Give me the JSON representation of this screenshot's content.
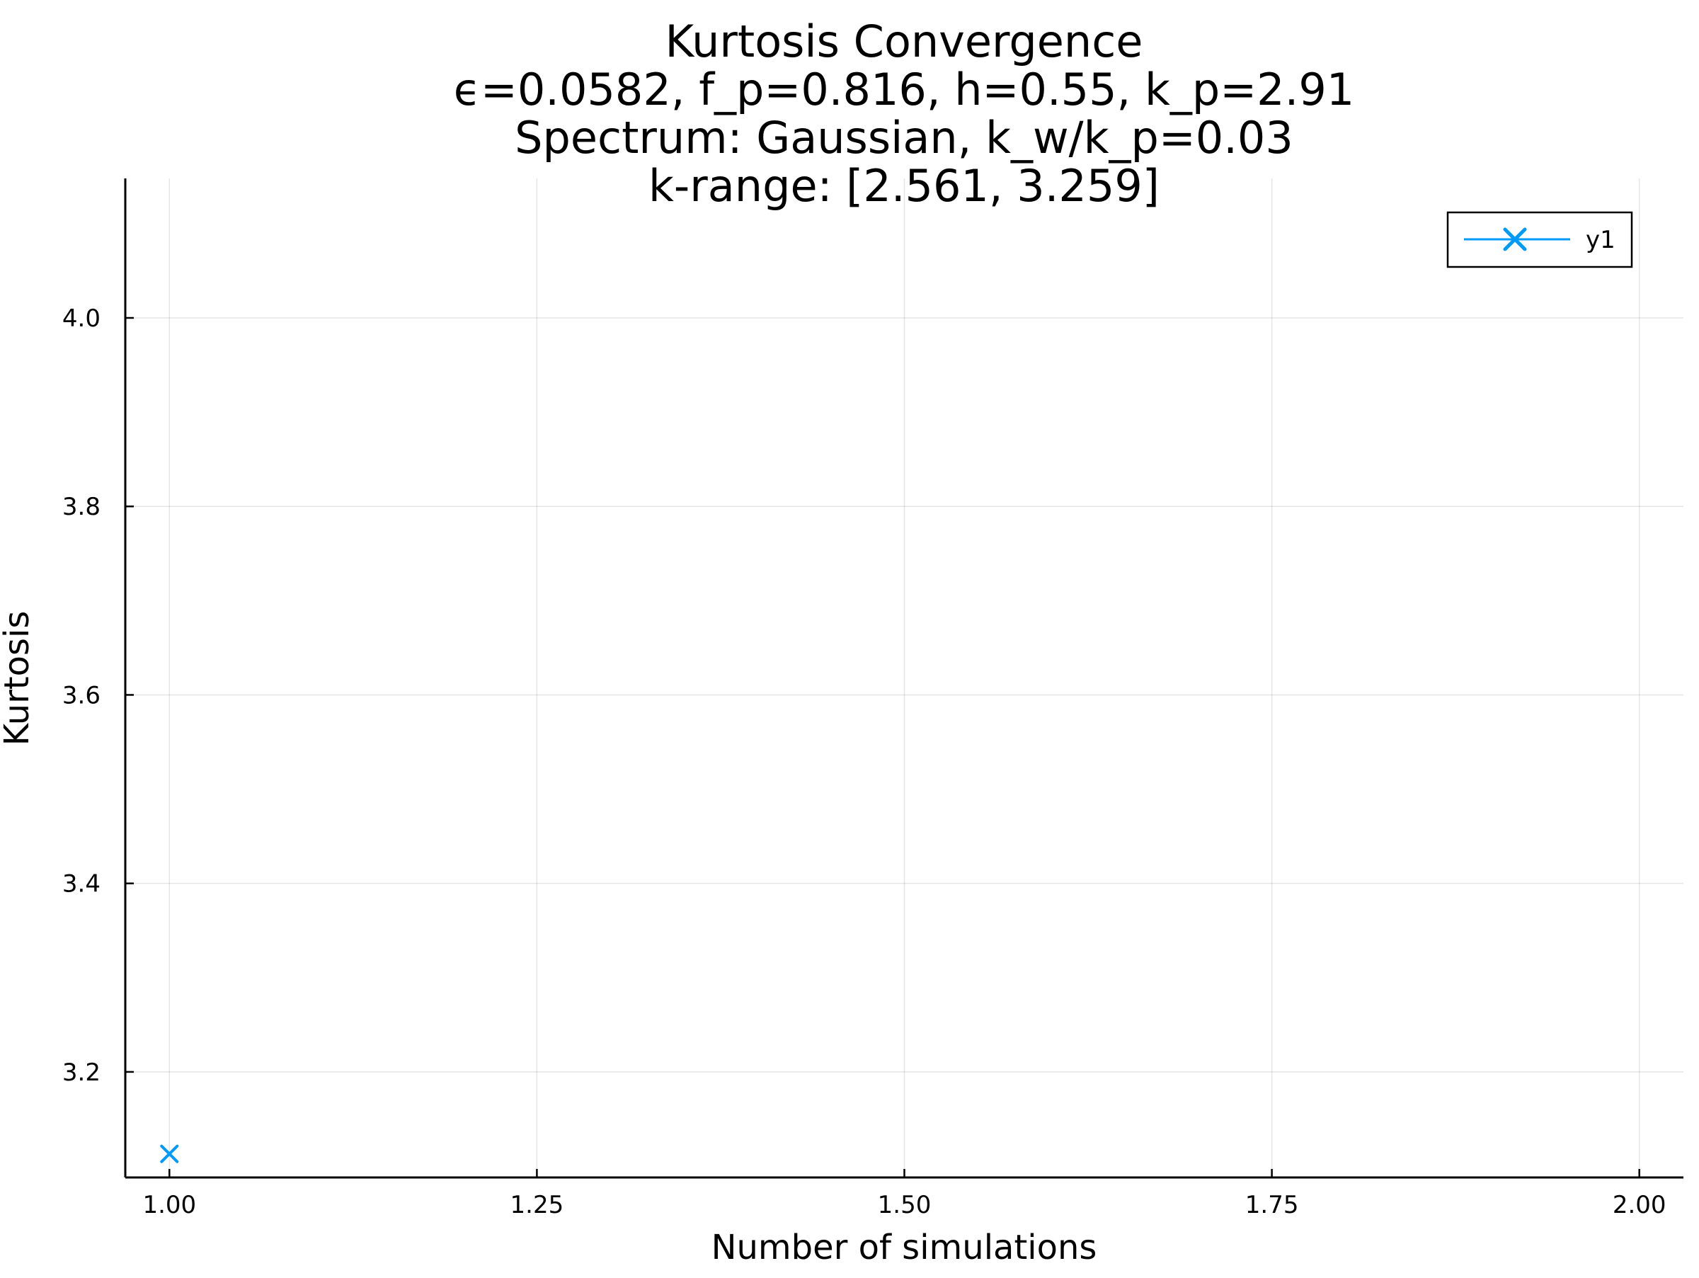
{
  "chart_data": {
    "type": "scatter",
    "title_lines": [
      "Kurtosis Convergence",
      "ϵ=0.0582, f_p=0.816, h=0.55, k_p=2.91",
      "Spectrum: Gaussian, k_w/k_p=0.03",
      "k-range: [2.561, 3.259]"
    ],
    "xlabel": "Number of simulations",
    "ylabel": "Kurtosis",
    "xlim": [
      0.97,
      2.03
    ],
    "ylim": [
      3.088,
      4.148
    ],
    "x_ticks": [
      1.0,
      1.25,
      1.5,
      1.75,
      2.0
    ],
    "x_tick_labels": [
      "1.00",
      "1.25",
      "1.50",
      "1.75",
      "2.00"
    ],
    "y_ticks": [
      3.2,
      3.4,
      3.6,
      3.8,
      4.0
    ],
    "y_tick_labels": [
      "3.2",
      "3.4",
      "3.6",
      "3.8",
      "4.0"
    ],
    "grid": true,
    "legend_position": "top-right",
    "series": [
      {
        "name": "y1",
        "color": "#009af9",
        "marker": "x-cross",
        "x": [
          1
        ],
        "y": [
          3.113
        ]
      }
    ]
  }
}
